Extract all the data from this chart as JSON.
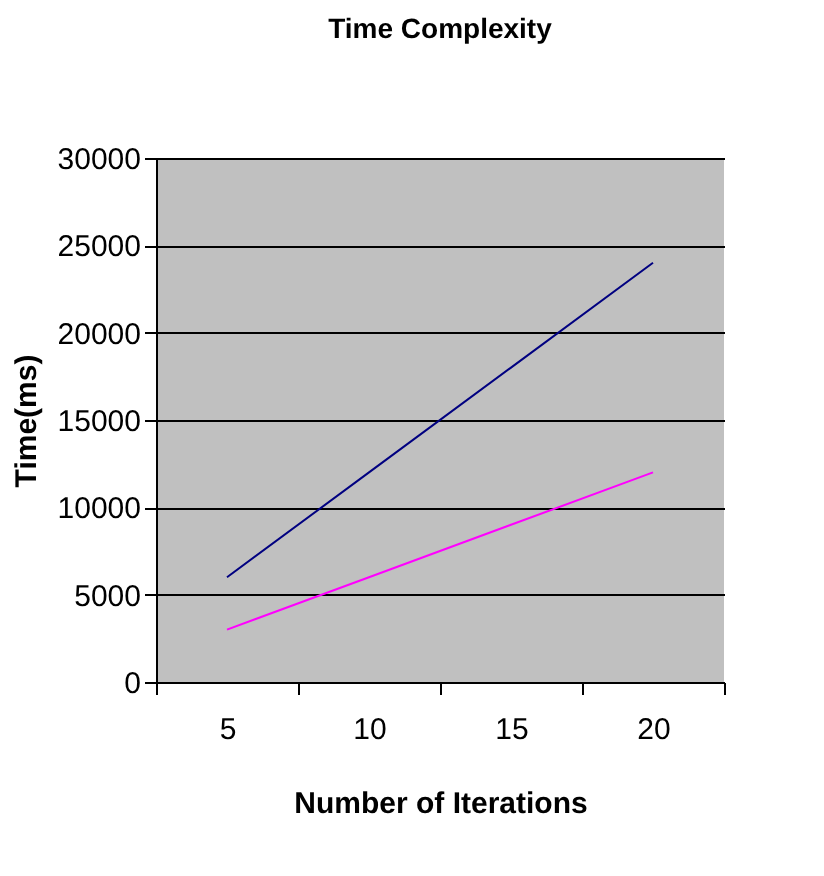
{
  "chart_data": {
    "type": "line",
    "title": "Time Complexity",
    "xlabel": "Number of Iterations",
    "ylabel": "Time(ms)",
    "categories": [
      "5",
      "10",
      "15",
      "20"
    ],
    "series": [
      {
        "color": "#000080",
        "values": [
          6000,
          12000,
          18000,
          24000
        ]
      },
      {
        "color": "#ff00ff",
        "values": [
          3000,
          6000,
          9000,
          12000
        ]
      }
    ],
    "ylim": [
      0,
      30000
    ],
    "yticks": [
      0,
      5000,
      10000,
      15000,
      20000,
      25000,
      30000
    ],
    "grid": "y",
    "legend": false,
    "marker": "none",
    "line_style": "solid"
  }
}
